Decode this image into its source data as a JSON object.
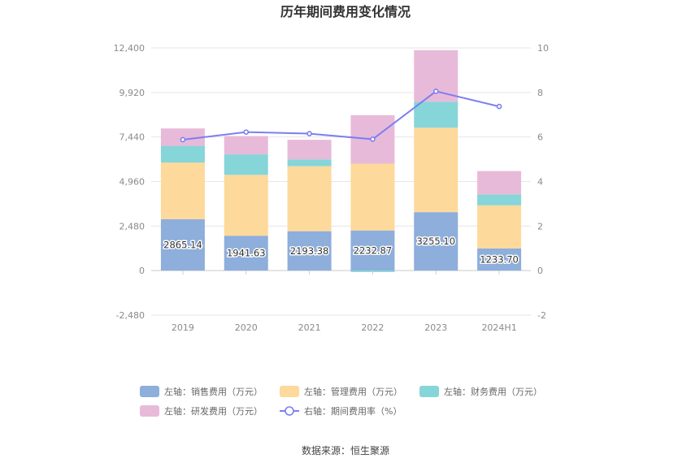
{
  "chart_data": {
    "type": "bar",
    "title": "历年期间费用变化情况",
    "categories": [
      "2019",
      "2020",
      "2021",
      "2022",
      "2023",
      "2024H1"
    ],
    "left_axis": {
      "ylim": [
        -2480,
        12400
      ],
      "ticks": [
        12400,
        9920,
        7440,
        4960,
        2480,
        0,
        -2480
      ],
      "tick_labels": [
        "12,400",
        "9,920",
        "7,440",
        "4,960",
        "2,480",
        "0",
        "-2,480"
      ]
    },
    "right_axis": {
      "ylim": [
        -2,
        10
      ],
      "ticks": [
        10,
        8,
        6,
        4,
        2,
        0,
        -2
      ],
      "tick_labels": [
        "10",
        "8",
        "6",
        "4",
        "2",
        "0",
        "-2"
      ]
    },
    "series": [
      {
        "name": "左轴：销售费用（万元）",
        "axis": "left",
        "stack": "cost",
        "color": "#8eaedb",
        "values": [
          2865.14,
          1941.63,
          2193.38,
          2232.87,
          3255.1,
          1233.7
        ],
        "labels": [
          "2865.14",
          "1941.63",
          "2193.38",
          "2232.87",
          "3255.10",
          "1233.70"
        ]
      },
      {
        "name": "左轴：管理费用（万元）",
        "axis": "left",
        "stack": "cost",
        "color": "#fdd99b",
        "values": [
          3150,
          3390,
          3620,
          3720,
          4700,
          2400
        ]
      },
      {
        "name": "左轴：财务费用（万元）",
        "axis": "left",
        "stack": "cost",
        "color": "#86d5d9",
        "values": [
          930,
          1140,
          380,
          -80,
          1450,
          610
        ]
      },
      {
        "name": "左轴：研发费用（万元）",
        "axis": "left",
        "stack": "cost",
        "color": "#e8bad9",
        "values": [
          970,
          1020,
          1090,
          2700,
          2870,
          1300
        ]
      }
    ],
    "line": {
      "name": "右轴：期间费用率（%）",
      "axis": "right",
      "color": "#7b7ff0",
      "values": [
        5.88,
        6.22,
        6.15,
        5.9,
        8.05,
        7.37
      ]
    },
    "source": "数据来源：恒生聚源"
  }
}
